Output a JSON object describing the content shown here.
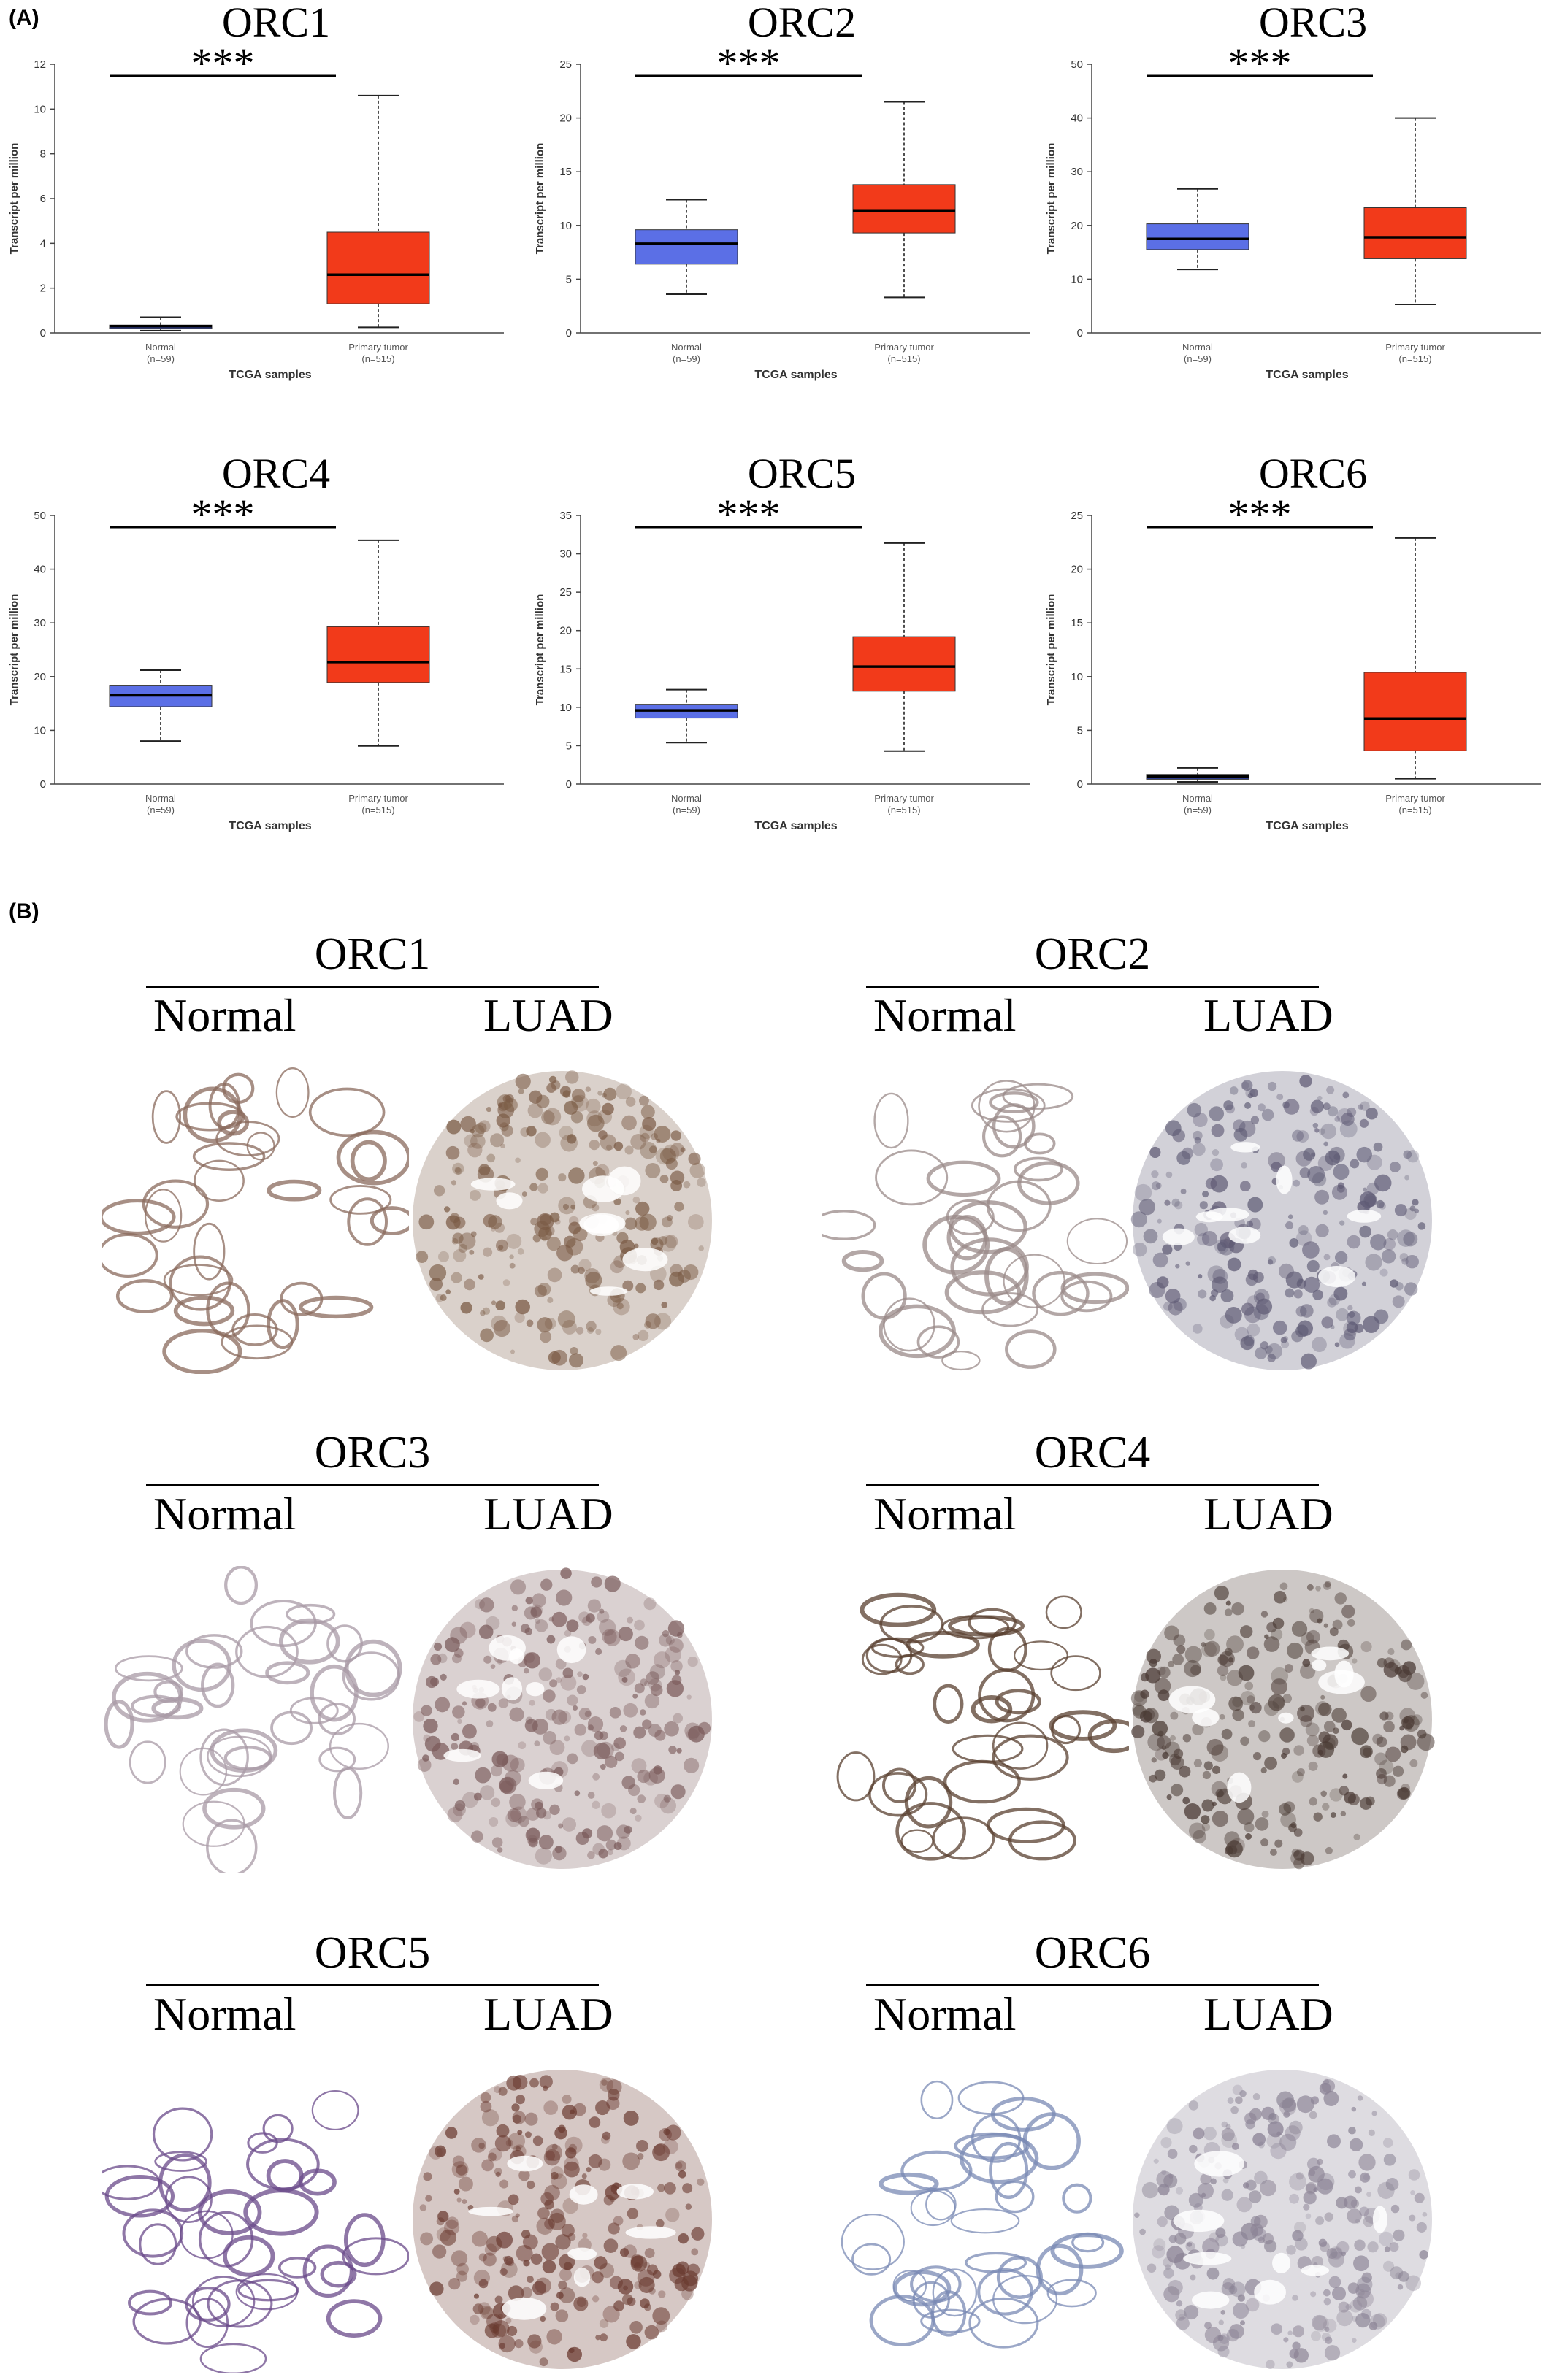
{
  "panel_a_label": "(A)",
  "panel_b_label": "(B)",
  "chart_data": [
    {
      "type": "box",
      "title": "ORC1",
      "significance": "***",
      "ylabel": "Transcript per million",
      "xlabel": "TCGA samples",
      "ylim": [
        0,
        12
      ],
      "yticks": [
        0,
        2,
        4,
        6,
        8,
        10,
        12
      ],
      "categories": [
        "Normal",
        "Primary tumor"
      ],
      "category_n": [
        "(n=59)",
        "(n=515)"
      ],
      "boxes": [
        {
          "min": 0.1,
          "q1": 0.2,
          "median": 0.3,
          "q3": 0.35,
          "max": 0.7,
          "color": "#3b4fb8"
        },
        {
          "min": 0.25,
          "q1": 1.3,
          "median": 2.6,
          "q3": 4.5,
          "max": 10.6,
          "color": "#f23a1a"
        }
      ]
    },
    {
      "type": "box",
      "title": "ORC2",
      "significance": "***",
      "ylabel": "Transcript per million",
      "xlabel": "TCGA samples",
      "ylim": [
        0,
        25
      ],
      "yticks": [
        0,
        5,
        10,
        15,
        20,
        25
      ],
      "categories": [
        "Normal",
        "Primary tumor"
      ],
      "category_n": [
        "(n=59)",
        "(n=515)"
      ],
      "boxes": [
        {
          "min": 3.6,
          "q1": 6.4,
          "median": 8.3,
          "q3": 9.6,
          "max": 12.4,
          "color": "#5b6fe6"
        },
        {
          "min": 3.3,
          "q1": 9.3,
          "median": 11.4,
          "q3": 13.8,
          "max": 21.5,
          "color": "#f23a1a"
        }
      ]
    },
    {
      "type": "box",
      "title": "ORC3",
      "significance": "***",
      "ylabel": "Transcript per million",
      "xlabel": "TCGA samples",
      "ylim": [
        0,
        50
      ],
      "yticks": [
        0,
        10,
        20,
        30,
        40,
        50
      ],
      "categories": [
        "Normal",
        "Primary tumor"
      ],
      "category_n": [
        "(n=59)",
        "(n=515)"
      ],
      "boxes": [
        {
          "min": 11.8,
          "q1": 15.5,
          "median": 17.5,
          "q3": 20.3,
          "max": 26.8,
          "color": "#5b6fe6"
        },
        {
          "min": 5.3,
          "q1": 13.8,
          "median": 17.8,
          "q3": 23.3,
          "max": 40.0,
          "color": "#f23a1a"
        }
      ]
    },
    {
      "type": "box",
      "title": "ORC4",
      "significance": "***",
      "ylabel": "Transcript per million",
      "xlabel": "TCGA samples",
      "ylim": [
        0,
        50
      ],
      "yticks": [
        0,
        10,
        20,
        30,
        40,
        50
      ],
      "categories": [
        "Normal",
        "Primary tumor"
      ],
      "category_n": [
        "(n=59)",
        "(n=515)"
      ],
      "boxes": [
        {
          "min": 8.0,
          "q1": 14.4,
          "median": 16.5,
          "q3": 18.4,
          "max": 21.2,
          "color": "#5b6fe6"
        },
        {
          "min": 7.1,
          "q1": 18.9,
          "median": 22.7,
          "q3": 29.3,
          "max": 45.4,
          "color": "#f23a1a"
        }
      ]
    },
    {
      "type": "box",
      "title": "ORC5",
      "significance": "***",
      "ylabel": "Transcript per million",
      "xlabel": "TCGA samples",
      "ylim": [
        0,
        35
      ],
      "yticks": [
        0,
        5,
        10,
        15,
        20,
        25,
        30,
        35
      ],
      "categories": [
        "Normal",
        "Primary tumor"
      ],
      "category_n": [
        "(n=59)",
        "(n=515)"
      ],
      "boxes": [
        {
          "min": 5.4,
          "q1": 8.6,
          "median": 9.6,
          "q3": 10.4,
          "max": 12.3,
          "color": "#5b6fe6"
        },
        {
          "min": 4.3,
          "q1": 12.1,
          "median": 15.3,
          "q3": 19.2,
          "max": 31.4,
          "color": "#f23a1a"
        }
      ]
    },
    {
      "type": "box",
      "title": "ORC6",
      "significance": "***",
      "ylabel": "Transcript per million",
      "xlabel": "TCGA samples",
      "ylim": [
        0,
        25
      ],
      "yticks": [
        0,
        5,
        10,
        15,
        20,
        25
      ],
      "categories": [
        "Normal",
        "Primary tumor"
      ],
      "category_n": [
        "(n=59)",
        "(n=515)"
      ],
      "boxes": [
        {
          "min": 0.2,
          "q1": 0.45,
          "median": 0.7,
          "q3": 0.9,
          "max": 1.5,
          "color": "#2e3f9e"
        },
        {
          "min": 0.5,
          "q1": 3.1,
          "median": 6.1,
          "q3": 10.4,
          "max": 22.9,
          "color": "#f23a1a"
        }
      ]
    }
  ],
  "ihc": [
    {
      "gene": "ORC1",
      "normal_label": "Normal",
      "tumor_label": "LUAD",
      "normal_color": "#8a6a5c",
      "tumor_color": "#7a5a44"
    },
    {
      "gene": "ORC2",
      "normal_label": "Normal",
      "tumor_label": "LUAD",
      "normal_color": "#9a8a88",
      "tumor_color": "#5e5a74"
    },
    {
      "gene": "ORC3",
      "normal_label": "Normal",
      "tumor_label": "LUAD",
      "normal_color": "#a89aa6",
      "tumor_color": "#7a5a5a"
    },
    {
      "gene": "ORC4",
      "normal_label": "Normal",
      "tumor_label": "LUAD",
      "normal_color": "#5a4030",
      "tumor_color": "#4a3a34"
    },
    {
      "gene": "ORC5",
      "normal_label": "Normal",
      "tumor_label": "LUAD",
      "normal_color": "#6a4a8a",
      "tumor_color": "#6a3a30"
    },
    {
      "gene": "ORC6",
      "normal_label": "Normal",
      "tumor_label": "LUAD",
      "normal_color": "#7a8ab4",
      "tumor_color": "#8a8294"
    }
  ]
}
